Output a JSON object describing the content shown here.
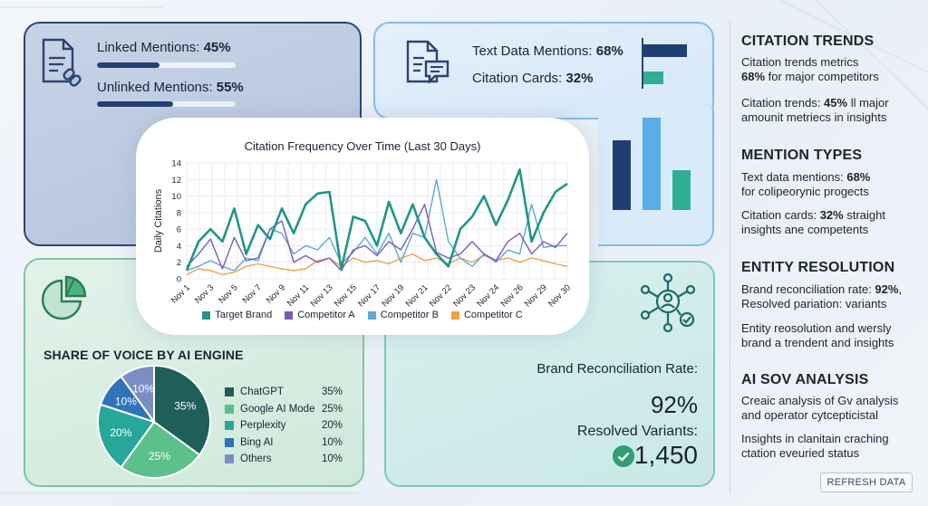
{
  "mentions": {
    "linked_label": "Linked Mentions:",
    "linked_value": "45%",
    "linked_pct": 0.45,
    "unlinked_label": "Unlinked Mentions:",
    "unlinked_value": "55%",
    "unlinked_pct": 0.55
  },
  "text_data": {
    "text_label": "Text Data Mentions:",
    "text_value": "68%",
    "text_pct": 0.68,
    "cards_label": "Citation Cards:",
    "cards_value": "32%",
    "cards_pct": 0.32,
    "bar_colors": [
      "#1f3f74",
      "#2fae96"
    ]
  },
  "vertical_bars": {
    "values": [
      0.63,
      0.84,
      0.36
    ],
    "colors": [
      "#1f3f74",
      "#58aee6",
      "#2fae96"
    ]
  },
  "chart_data": {
    "type": "line",
    "title": "Citation Frequency Over Time (Last 30 Days)",
    "ylabel": "Daily Citations",
    "xlabel": "",
    "ylim": [
      0,
      14
    ],
    "yticks": [
      0,
      2,
      4,
      6,
      8,
      10,
      12,
      14
    ],
    "grid": true,
    "legend_position": "bottom",
    "x_tick_labels": [
      "Nov 1",
      "Nov 3",
      "Nov 5",
      "Nov 7",
      "Nov 9",
      "Nov 11",
      "Nov 13",
      "Nov 15",
      "Nov 17",
      "Nov 19",
      "Nov 21",
      "Nov 22",
      "Nov 23",
      "Nov 24",
      "Nov 26",
      "Nov 29",
      "Nov 30"
    ],
    "series": [
      {
        "name": "Target Brand",
        "color": "#1f9688",
        "values": [
          1,
          4.5,
          6,
          4.5,
          8.5,
          3,
          6.5,
          4.8,
          8.5,
          5.5,
          9,
          10.3,
          10.5,
          1.2,
          7.5,
          7,
          4,
          9.3,
          5.5,
          9,
          5,
          3,
          1.5,
          6,
          7.5,
          10,
          6.5,
          9.5,
          13.2,
          4.5,
          8,
          10.5,
          11.5
        ]
      },
      {
        "name": "Competitor A",
        "color": "#7a5cb8",
        "values": [
          1.5,
          3,
          4.8,
          1.2,
          5,
          2.2,
          2.5,
          6,
          7,
          2,
          2.8,
          2,
          2.5,
          1,
          3.5,
          4,
          2.8,
          4.5,
          3.5,
          6,
          9,
          3.2,
          2.5,
          3,
          4.5,
          3,
          2.2,
          4.5,
          5.5,
          3,
          4.5,
          3.8,
          5.5
        ]
      },
      {
        "name": "Competitor B",
        "color": "#5aa8dc",
        "values": [
          1,
          1.5,
          2.2,
          1.5,
          1,
          2.5,
          2.2,
          6,
          5.5,
          3,
          4,
          3.5,
          5,
          1.8,
          3.2,
          5,
          3,
          5.5,
          2,
          5.5,
          5,
          12,
          4.5,
          2.5,
          1.5,
          3,
          2,
          3.5,
          3,
          9,
          3.8,
          4,
          4
        ]
      },
      {
        "name": "Competitor C",
        "color": "#f0a04b",
        "values": [
          0.5,
          1.2,
          1,
          0.5,
          0.8,
          1.5,
          1.8,
          1.5,
          1.2,
          1,
          1.2,
          2.2,
          2.5,
          1.5,
          2.5,
          2,
          2.2,
          1.8,
          2.5,
          3,
          2.2,
          2.5,
          1.8,
          2.5,
          2,
          2.8,
          2.2,
          2.5,
          2,
          2.5,
          2.2,
          1.8,
          1.5
        ]
      }
    ]
  },
  "share_of_voice": {
    "title": "SHARE OF VOICE BY AI ENGINE",
    "slices": [
      {
        "name": "ChatGPT",
        "value": 35,
        "label": "35%",
        "color": "#1f5f5a"
      },
      {
        "name": "Google AI Mode",
        "value": 25,
        "label": "25%",
        "color": "#5cc08a"
      },
      {
        "name": "Perplexity",
        "value": 20,
        "label": "20%",
        "color": "#27a79a"
      },
      {
        "name": "Bing AI",
        "value": 10,
        "label": "10%",
        "color": "#2f73b8"
      },
      {
        "name": "Others",
        "value": 10,
        "label": "10%",
        "color": "#7b8ec4"
      }
    ]
  },
  "brand": {
    "rate_label": "Brand Reconciliation Rate:",
    "rate_value": "92%",
    "resolved_label": "Resolved Variants:",
    "resolved_value": "1,450"
  },
  "sidebar": {
    "s1_title": "CITATION TRENDS",
    "s1_a": "Citation trends metrics",
    "s1_b_bold": "68%",
    "s1_b_rest": " for major competitors",
    "s1_c_pre": "Citation trends: ",
    "s1_c_bold": "45%",
    "s1_c_rest": " ll major",
    "s1_d": "amounit metriecs in insights",
    "s2_title": "MENTION TYPES",
    "s2_a_pre": "Text data mentions: ",
    "s2_a_bold": "68%",
    "s2_b": "for colipeorynic progects",
    "s2_c_pre": "Citation cards: ",
    "s2_c_bold": "32%",
    "s2_c_rest": " straight",
    "s2_d": "insights ane competents",
    "s3_title": "ENTITY RESOLUTION",
    "s3_a_pre": "Brand reconciliation rate: ",
    "s3_a_bold": "92%",
    "s3_a_rest": ",",
    "s3_b": "Resolved pariation: variants",
    "s3_c": "Entity reosolution and wersly",
    "s3_d": "brand a trendent and insights",
    "s4_title": "AI SOV ANALYSIS",
    "s4_a": "Creaic analysis of Gv analysis",
    "s4_b": "and operator cytcepticistal",
    "s4_c": "Insights in clanitain craching",
    "s4_d": "ctation eveuried status",
    "refresh_label": "REFRESH DATA"
  }
}
